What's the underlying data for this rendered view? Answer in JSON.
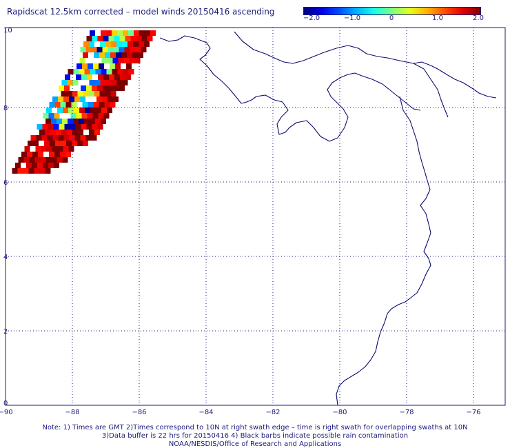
{
  "title": "Rapidscat 12.5km corrected – model winds 20150416 ascending",
  "colorbar": {
    "labels": [
      "−2.0",
      "−1.0",
      "0",
      "1.0",
      "2.0"
    ],
    "range": [
      -2.0,
      2.0
    ]
  },
  "axes": {
    "x_labels": [
      "−90",
      "−88",
      "−86",
      "−84",
      "−82",
      "−80",
      "−78",
      "−76"
    ],
    "y_labels": [
      "0",
      "2",
      "4",
      "6",
      "8",
      "10"
    ],
    "x_range": [
      -90,
      -75
    ],
    "y_range": [
      0,
      10
    ]
  },
  "notes": {
    "line1": "Note: 1) Times are GMT 2)Times correspond to 10N at right swath edge – time is right swath for overlapping swaths at 10N",
    "line2": "3)Data buffer is 22 hrs for 20150416 4) Black barbs indicate possible rain contamination",
    "line3": "NOAA/NESDIS/Office of Research and Applications"
  },
  "colors": {
    "text": "#1a1a7a",
    "coast": "#0a0a6e",
    "grid": "#1a1a7a"
  }
}
